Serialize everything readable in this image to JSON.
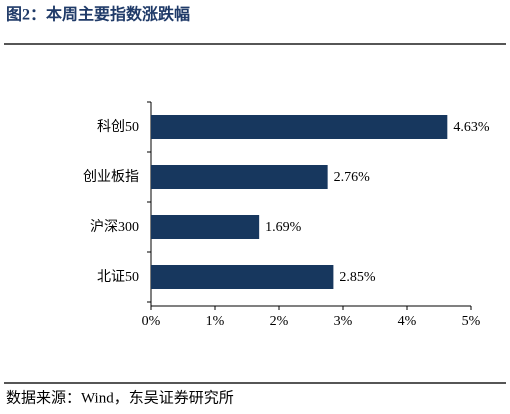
{
  "chart_data": {
    "type": "bar",
    "orientation": "horizontal",
    "title": "图2：本周主要指数涨跌幅",
    "source": "数据来源：Wind，东吴证券研究所",
    "categories": [
      "科创50",
      "创业板指",
      "沪深300",
      "北证50"
    ],
    "values": [
      4.63,
      2.76,
      1.69,
      2.85
    ],
    "value_labels": [
      "4.63%",
      "2.76%",
      "1.69%",
      "2.85%"
    ],
    "color": "#17375e",
    "xlim": [
      0,
      5
    ],
    "xticks": [
      {
        "value": 0,
        "label": "0%"
      },
      {
        "value": 1,
        "label": "1%"
      },
      {
        "value": 2,
        "label": "2%"
      },
      {
        "value": 3,
        "label": "3%"
      },
      {
        "value": 4,
        "label": "4%"
      },
      {
        "value": 5,
        "label": "5%"
      }
    ],
    "grid": false
  }
}
